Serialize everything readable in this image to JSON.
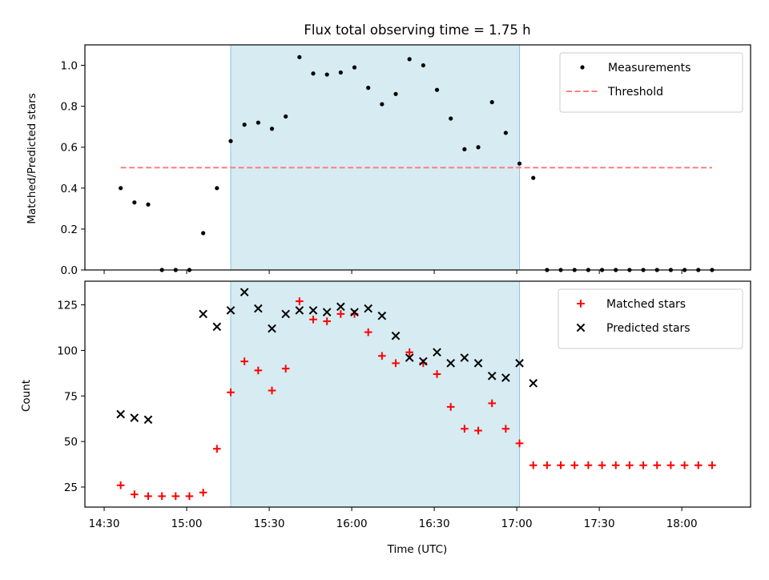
{
  "chart_data": [
    {
      "type": "scatter",
      "title": "Flux total observing time = 1.75 h",
      "xlabel": "",
      "ylabel": "Matched/Predicted stars",
      "ylim": [
        0,
        1.1
      ],
      "yticks": [
        "0.0",
        "0.2",
        "0.4",
        "0.6",
        "0.8",
        "1.0"
      ],
      "xlim": [
        "14:23",
        "18:25"
      ],
      "highlight_span": {
        "start": "15:16",
        "end": "17:01",
        "color": "#add8e6"
      },
      "legend_position": "upper right",
      "series": [
        {
          "name": "Measurements",
          "marker": "dot",
          "color": "#000000",
          "x": [
            "14:36",
            "14:41",
            "14:46",
            "14:51",
            "14:56",
            "15:01",
            "15:06",
            "15:11",
            "15:16",
            "15:21",
            "15:26",
            "15:31",
            "15:36",
            "15:41",
            "15:46",
            "15:51",
            "15:56",
            "16:01",
            "16:06",
            "16:11",
            "16:16",
            "16:21",
            "16:26",
            "16:31",
            "16:36",
            "16:41",
            "16:46",
            "16:51",
            "16:56",
            "17:01",
            "17:06",
            "17:11",
            "17:16",
            "17:21",
            "17:26",
            "17:31",
            "17:36",
            "17:41",
            "17:46",
            "17:51",
            "17:56",
            "18:01",
            "18:06",
            "18:11"
          ],
          "y": [
            0.4,
            0.33,
            0.32,
            0.0,
            0.0,
            0.0,
            0.18,
            0.4,
            0.63,
            0.71,
            0.72,
            0.69,
            0.75,
            1.04,
            0.96,
            0.955,
            0.965,
            0.99,
            0.89,
            0.81,
            0.86,
            1.03,
            1.0,
            0.88,
            0.74,
            0.59,
            0.6,
            0.82,
            0.67,
            0.52,
            0.45,
            0.0,
            0.0,
            0.0,
            0.0,
            0.0,
            0.0,
            0.0,
            0.0,
            0.0,
            0.0,
            0.0,
            0.0,
            0.0
          ]
        },
        {
          "name": "Threshold",
          "marker": "dashed-line",
          "color": "#ff7f7f",
          "x": [
            "14:36",
            "18:11"
          ],
          "y": [
            0.5,
            0.5
          ]
        }
      ]
    },
    {
      "type": "scatter",
      "title": "",
      "xlabel": "Time (UTC)",
      "ylabel": "Count",
      "ylim": [
        14,
        138
      ],
      "yticks": [
        "25",
        "50",
        "75",
        "100",
        "125"
      ],
      "xlim": [
        "14:23",
        "18:25"
      ],
      "xticks": [
        "14:30",
        "15:00",
        "15:30",
        "16:00",
        "16:30",
        "17:00",
        "17:30",
        "18:00"
      ],
      "highlight_span": {
        "start": "15:16",
        "end": "17:01",
        "color": "#add8e6"
      },
      "legend_position": "upper right",
      "series": [
        {
          "name": "Matched stars",
          "marker": "plus",
          "color": "#ff0000",
          "x": [
            "14:36",
            "14:41",
            "14:46",
            "14:51",
            "14:56",
            "15:01",
            "15:06",
            "15:11",
            "15:16",
            "15:21",
            "15:26",
            "15:31",
            "15:36",
            "15:41",
            "15:46",
            "15:51",
            "15:56",
            "16:01",
            "16:06",
            "16:11",
            "16:16",
            "16:21",
            "16:26",
            "16:31",
            "16:36",
            "16:41",
            "16:46",
            "16:51",
            "16:56",
            "17:01",
            "17:06",
            "17:11",
            "17:16",
            "17:21",
            "17:26",
            "17:31",
            "17:36",
            "17:41",
            "17:46",
            "17:51",
            "17:56",
            "18:01",
            "18:06",
            "18:11"
          ],
          "y": [
            26,
            21,
            20,
            20,
            20,
            20,
            22,
            46,
            77,
            94,
            89,
            78,
            90,
            127,
            117,
            116,
            120,
            120,
            110,
            97,
            93,
            99,
            93,
            87,
            69,
            57,
            56,
            71,
            57,
            49,
            37,
            37,
            37,
            37,
            37,
            37,
            37,
            37,
            37,
            37,
            37,
            37,
            37,
            37
          ]
        },
        {
          "name": "Predicted stars",
          "marker": "x",
          "color": "#000000",
          "x": [
            "14:36",
            "14:41",
            "14:46",
            "15:06",
            "15:11",
            "15:16",
            "15:21",
            "15:26",
            "15:31",
            "15:36",
            "15:41",
            "15:46",
            "15:51",
            "15:56",
            "16:01",
            "16:06",
            "16:11",
            "16:16",
            "16:21",
            "16:26",
            "16:31",
            "16:36",
            "16:41",
            "16:46",
            "16:51",
            "16:56",
            "17:01",
            "17:06"
          ],
          "y": [
            65,
            63,
            62,
            120,
            113,
            122,
            132,
            123,
            112,
            120,
            122,
            122,
            121,
            124,
            121,
            123,
            119,
            108,
            96,
            94,
            99,
            93,
            96,
            93,
            86,
            85,
            93,
            82
          ]
        }
      ]
    }
  ]
}
